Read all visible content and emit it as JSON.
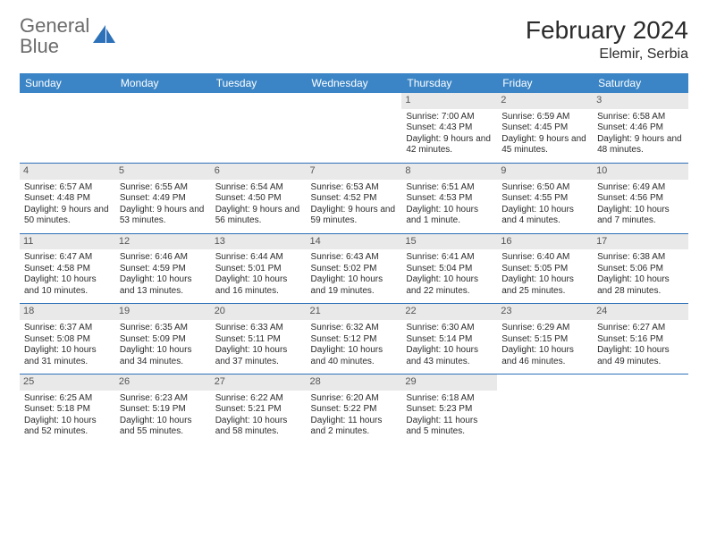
{
  "brand": {
    "name1": "General",
    "name2": "Blue"
  },
  "title": "February 2024",
  "location": "Elemir, Serbia",
  "colors": {
    "header_bg": "#3b85c6",
    "header_text": "#ffffff",
    "divider": "#2d71b8",
    "daynum_bg": "#e9e9e9",
    "text": "#2b2b2b",
    "logo_gray": "#6b6b6b",
    "logo_blue": "#2d71b8"
  },
  "weekdays": [
    "Sunday",
    "Monday",
    "Tuesday",
    "Wednesday",
    "Thursday",
    "Friday",
    "Saturday"
  ],
  "weeks": [
    [
      null,
      null,
      null,
      null,
      {
        "d": "1",
        "sr": "7:00 AM",
        "ss": "4:43 PM",
        "dl": "9 hours and 42 minutes."
      },
      {
        "d": "2",
        "sr": "6:59 AM",
        "ss": "4:45 PM",
        "dl": "9 hours and 45 minutes."
      },
      {
        "d": "3",
        "sr": "6:58 AM",
        "ss": "4:46 PM",
        "dl": "9 hours and 48 minutes."
      }
    ],
    [
      {
        "d": "4",
        "sr": "6:57 AM",
        "ss": "4:48 PM",
        "dl": "9 hours and 50 minutes."
      },
      {
        "d": "5",
        "sr": "6:55 AM",
        "ss": "4:49 PM",
        "dl": "9 hours and 53 minutes."
      },
      {
        "d": "6",
        "sr": "6:54 AM",
        "ss": "4:50 PM",
        "dl": "9 hours and 56 minutes."
      },
      {
        "d": "7",
        "sr": "6:53 AM",
        "ss": "4:52 PM",
        "dl": "9 hours and 59 minutes."
      },
      {
        "d": "8",
        "sr": "6:51 AM",
        "ss": "4:53 PM",
        "dl": "10 hours and 1 minute."
      },
      {
        "d": "9",
        "sr": "6:50 AM",
        "ss": "4:55 PM",
        "dl": "10 hours and 4 minutes."
      },
      {
        "d": "10",
        "sr": "6:49 AM",
        "ss": "4:56 PM",
        "dl": "10 hours and 7 minutes."
      }
    ],
    [
      {
        "d": "11",
        "sr": "6:47 AM",
        "ss": "4:58 PM",
        "dl": "10 hours and 10 minutes."
      },
      {
        "d": "12",
        "sr": "6:46 AM",
        "ss": "4:59 PM",
        "dl": "10 hours and 13 minutes."
      },
      {
        "d": "13",
        "sr": "6:44 AM",
        "ss": "5:01 PM",
        "dl": "10 hours and 16 minutes."
      },
      {
        "d": "14",
        "sr": "6:43 AM",
        "ss": "5:02 PM",
        "dl": "10 hours and 19 minutes."
      },
      {
        "d": "15",
        "sr": "6:41 AM",
        "ss": "5:04 PM",
        "dl": "10 hours and 22 minutes."
      },
      {
        "d": "16",
        "sr": "6:40 AM",
        "ss": "5:05 PM",
        "dl": "10 hours and 25 minutes."
      },
      {
        "d": "17",
        "sr": "6:38 AM",
        "ss": "5:06 PM",
        "dl": "10 hours and 28 minutes."
      }
    ],
    [
      {
        "d": "18",
        "sr": "6:37 AM",
        "ss": "5:08 PM",
        "dl": "10 hours and 31 minutes."
      },
      {
        "d": "19",
        "sr": "6:35 AM",
        "ss": "5:09 PM",
        "dl": "10 hours and 34 minutes."
      },
      {
        "d": "20",
        "sr": "6:33 AM",
        "ss": "5:11 PM",
        "dl": "10 hours and 37 minutes."
      },
      {
        "d": "21",
        "sr": "6:32 AM",
        "ss": "5:12 PM",
        "dl": "10 hours and 40 minutes."
      },
      {
        "d": "22",
        "sr": "6:30 AM",
        "ss": "5:14 PM",
        "dl": "10 hours and 43 minutes."
      },
      {
        "d": "23",
        "sr": "6:29 AM",
        "ss": "5:15 PM",
        "dl": "10 hours and 46 minutes."
      },
      {
        "d": "24",
        "sr": "6:27 AM",
        "ss": "5:16 PM",
        "dl": "10 hours and 49 minutes."
      }
    ],
    [
      {
        "d": "25",
        "sr": "6:25 AM",
        "ss": "5:18 PM",
        "dl": "10 hours and 52 minutes."
      },
      {
        "d": "26",
        "sr": "6:23 AM",
        "ss": "5:19 PM",
        "dl": "10 hours and 55 minutes."
      },
      {
        "d": "27",
        "sr": "6:22 AM",
        "ss": "5:21 PM",
        "dl": "10 hours and 58 minutes."
      },
      {
        "d": "28",
        "sr": "6:20 AM",
        "ss": "5:22 PM",
        "dl": "11 hours and 2 minutes."
      },
      {
        "d": "29",
        "sr": "6:18 AM",
        "ss": "5:23 PM",
        "dl": "11 hours and 5 minutes."
      },
      null,
      null
    ]
  ],
  "labels": {
    "sunrise": "Sunrise:",
    "sunset": "Sunset:",
    "daylight": "Daylight:"
  }
}
